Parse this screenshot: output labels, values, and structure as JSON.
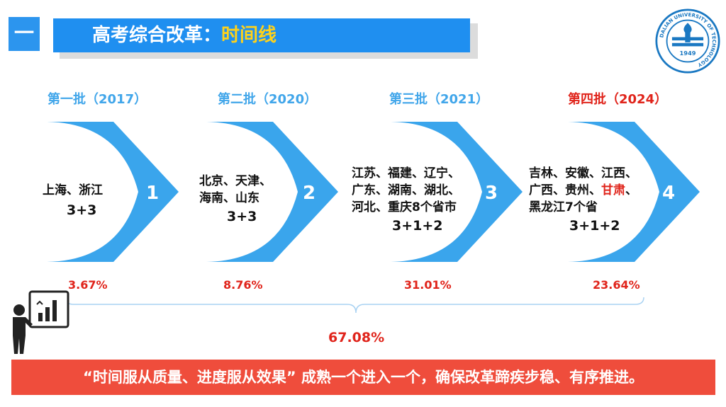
{
  "header": {
    "section_number": "一",
    "title_main": "高考综合改革：",
    "title_highlight": "时间线"
  },
  "logo": {
    "emblem_text_en": "DALIAN UNIVERSITY OF TECHNOLOGY",
    "emblem_year": "1949"
  },
  "batches": [
    {
      "title": "第一批（2017）",
      "number": "1",
      "provinces": [
        "上海、浙江"
      ],
      "formula": "3+3",
      "percent": "3.67%"
    },
    {
      "title": "第二批（2020）",
      "number": "2",
      "provinces": [
        "北京、天津、",
        "海南、山东"
      ],
      "formula": "3+3",
      "percent": "8.76%"
    },
    {
      "title": "第三批（2021）",
      "number": "3",
      "provinces": [
        "江苏、福建、辽宁、",
        "广东、湖南、湖北、",
        "河北、重庆8个省市"
      ],
      "formula": "3+1+2",
      "percent": "31.01%"
    },
    {
      "title": "第四批（2024）",
      "number": "4",
      "provinces_line1": "吉林、安徽、江西、",
      "provinces_line2_a": "广西、贵州、",
      "provinces_line2_hl": "甘肃",
      "provinces_line2_b": "、",
      "provinces_line3": "黑龙江7个省",
      "formula": "3+1+2",
      "percent": "23.64%"
    }
  ],
  "total_percent": "67.08%",
  "banner_text": "“时间服从质量、进度服从效果” 成熟一个进入一个，确保改革蹄疾步稳、有序推进。",
  "icons": [
    "presenter-chart-icon",
    "university-logo-icon"
  ],
  "colors": {
    "title_bar": "#1f8ff0",
    "title_highlight": "#ffd21a",
    "chevron": "#3aa5ec",
    "batch_title": "#41a6ea",
    "highlight_red": "#e0241b",
    "banner": "#ef4d3c"
  }
}
